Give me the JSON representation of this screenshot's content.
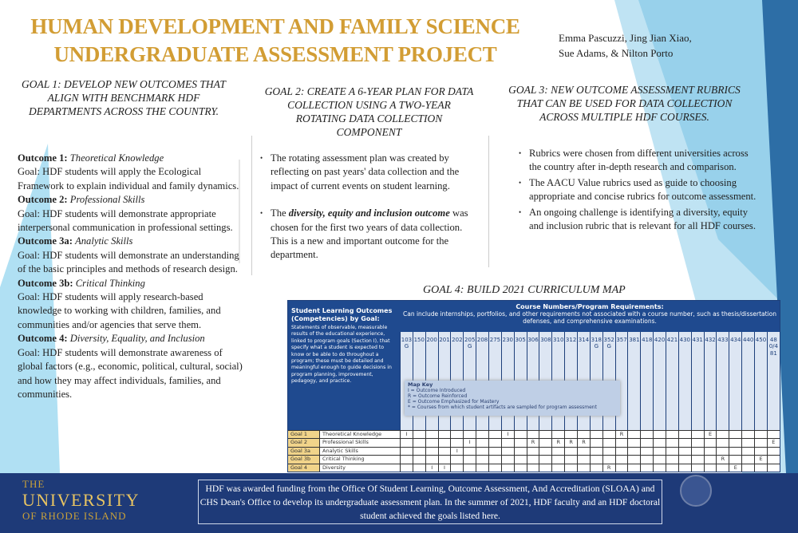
{
  "title": [
    "HUMAN DEVELOPMENT AND FAMILY SCIENCE",
    "UNDERGRADUATE ASSESSMENT PROJECT"
  ],
  "authors": [
    "Emma Pascuzzi, Jing Jian Xiao,",
    "Sue Adams, & Nilton Porto"
  ],
  "goal1": {
    "heading": "Goal 1: Develop new outcomes that align with benchmark HDF departments across the country.",
    "outcomes": [
      {
        "label": "Outcome 1:",
        "name": "Theoretical Knowledge",
        "text": "Goal: HDF students will apply the Ecological Framework to explain individual and family dynamics."
      },
      {
        "label": "Outcome 2:",
        "name": "Professional Skills",
        "text": "Goal: HDF students will demonstrate appropriate interpersonal communication in professional settings."
      },
      {
        "label": "Outcome 3a:",
        "name": "Analytic Skills",
        "text": "Goal: HDF students will demonstrate an understanding of the basic principles and methods of research design."
      },
      {
        "label": "Outcome 3b:",
        "name": "Critical Thinking",
        "text": "Goal: HDF students will apply research-based knowledge to working with children, families, and communities and/or agencies that serve them."
      },
      {
        "label": "Outcome 4:",
        "name": "Diversity, Equality, and Inclusion",
        "text": "Goal: HDF students will demonstrate awareness of global factors (e.g., economic, political, cultural, social) and how they may affect individuals, families, and communities."
      }
    ]
  },
  "goal2": {
    "heading": "Goal 2: Create a 6-year plan for data collection using a two-year rotating data collection component",
    "b1": "The rotating assessment plan was created by reflecting on past years' data collection and the impact of current events on student learning.",
    "b2_em": "diversity, equity and inclusion outcome",
    "b2_pre": "The ",
    "b2_post": " was chosen for the first two years of data collection. This is a new and important outcome for the department."
  },
  "goal3": {
    "heading": "Goal 3: New outcome assessment rubrics that can be used for data collection across multiple HDF courses.",
    "bullets": [
      "Rubrics were chosen from different universities across the country after in-depth research and comparison.",
      "The AACU Value rubrics used as guide to choosing appropriate and concise rubrics for outcome assessment.",
      "An ongoing challenge is identifying a diversity, equity and inclusion rubric that is relevant for all HDF courses."
    ]
  },
  "goal4": {
    "heading": "Goal 4: Build 2021 Curriculum Map",
    "map_key": {
      "title": "Map Key",
      "lines": [
        "I = Outcome Introduced",
        "R = Outcome Reinforced",
        "E = Outcome Emphasized for Mastery",
        "* = Courses from which student artifacts are sampled for program assessment"
      ]
    },
    "top_header": {
      "title": "Course Numbers/Program Requirements:",
      "sub": "Can include internships, portfolios, and other requirements not associated with a course number, such as thesis/dissertation defenses, and comprehensive examinations."
    },
    "slo_title": "Student Learning Outcomes (Competencies) by Goal:",
    "slo_text": "Statements of observable, measurable results of the educational experience, linked to program goals (Section I), that specify what a student is expected to know or be able to do throughout a program; these must be detailed and meaningful enough to guide decisions in program planning, improvement, pedagogy, and practice.",
    "courses": [
      "103G",
      "150",
      "200",
      "201",
      "202",
      "205G",
      "208",
      "275",
      "230",
      "305",
      "306",
      "308",
      "310",
      "312",
      "314",
      "318G",
      "352G",
      "357",
      "381",
      "418",
      "420",
      "421",
      "430",
      "431",
      "432",
      "433",
      "434",
      "440",
      "450",
      "480/481"
    ],
    "rows": [
      {
        "goal": "Goal 1",
        "name": "Theoretical Knowledge",
        "marks": {
          "0": "I",
          "8": "I",
          "17": "R",
          "24": "E"
        }
      },
      {
        "goal": "Goal 2",
        "name": "Professional Skills",
        "marks": {
          "5": "I",
          "10": "R",
          "12": "R",
          "13": "R",
          "14": "R",
          "29": "E"
        }
      },
      {
        "goal": "Goal 3a",
        "name": "Analytic Skills",
        "marks": {
          "4": "I"
        }
      },
      {
        "goal": "Goal 3b",
        "name": "Critical Thinking",
        "marks": {
          "25": "R",
          "28": "E"
        }
      },
      {
        "goal": "Goal 4",
        "name": "Diversity",
        "marks": {
          "2": "I",
          "3": "I",
          "16": "R",
          "26": "E"
        }
      }
    ]
  },
  "footer": {
    "uri": [
      "THE",
      "UNIVERSITY",
      "OF RHODE ISLAND"
    ],
    "text": "HDF was awarded funding from the Office Of Student Learning, Outcome Assessment, And Accreditation (SLOAA) and CHS Dean's Office to develop its undergraduate assessment plan. In the summer of 2021, HDF faculty and an HDF doctoral student achieved the goals listed here."
  }
}
